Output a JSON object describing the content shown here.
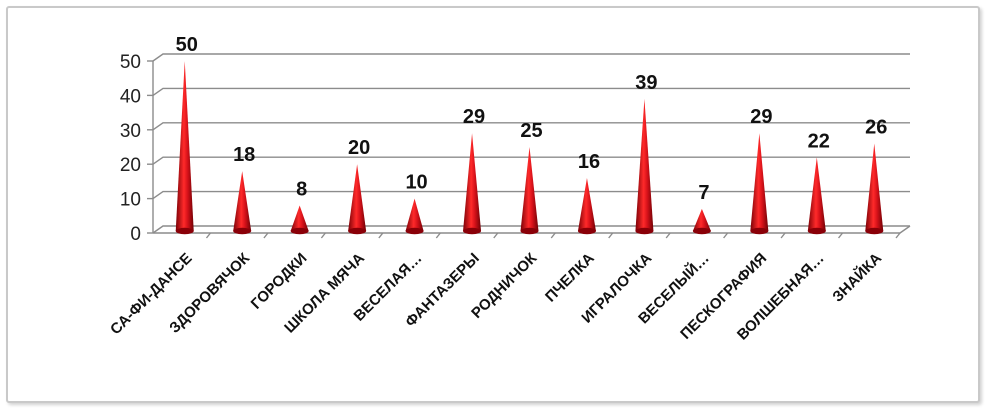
{
  "chart_data": {
    "type": "bar",
    "shape": "cone",
    "categories": [
      "СА-ФИ-ДАНСЕ",
      "ЗДОРОВЯЧОК",
      "ГОРОДКИ",
      "ШКОЛА МЯЧА",
      "ВЕСЕЛАЯ…",
      "ФАНТАЗЕРЫ",
      "РОДНИЧОК",
      "ПЧЕЛКА",
      "ИГРАЛОЧКА",
      "ВЕСЕЛЫЙ…",
      "ПЕСКОГРАФИЯ",
      "ВОЛШЕБНАЯ…",
      "ЗНАЙКА"
    ],
    "values": [
      50,
      18,
      8,
      20,
      10,
      29,
      25,
      16,
      39,
      7,
      29,
      22,
      26
    ],
    "ylim": [
      0,
      50
    ],
    "yticks": [
      0,
      10,
      20,
      30,
      40,
      50
    ],
    "grid": true,
    "legend": "none",
    "bar_color": "#e0141c",
    "bar_dark_color": "#8a0008",
    "title": "",
    "xlabel": "",
    "ylabel": ""
  }
}
